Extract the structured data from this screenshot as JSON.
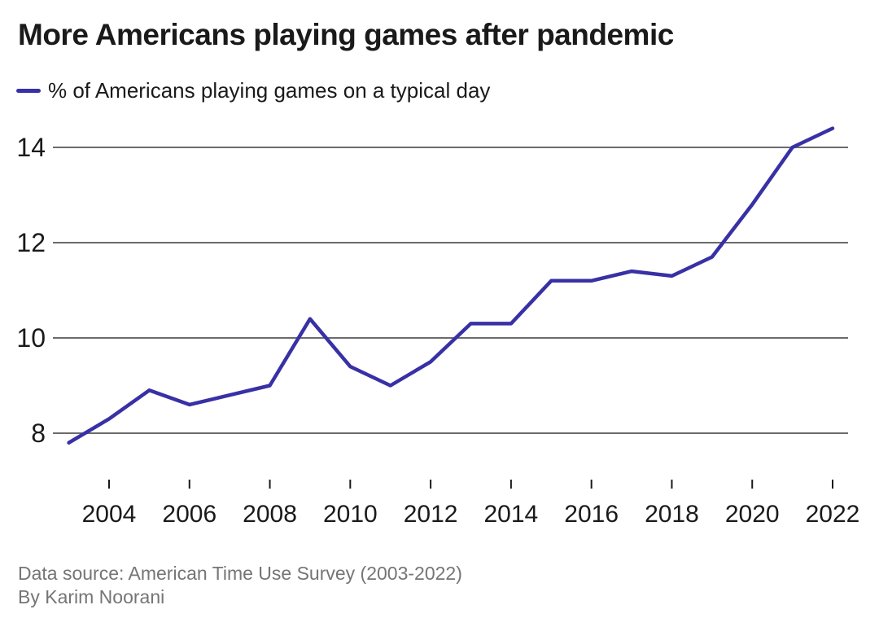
{
  "title": "More Americans playing games after pandemic",
  "legend": {
    "label": "% of Americans playing games on a typical day"
  },
  "footer": {
    "source": "Data source: American Time Use Survey (2003-2022)",
    "byline": "By Karim Noorani"
  },
  "colors": {
    "line": "#3831a5",
    "grid": "#6b6b6b",
    "tick": "#1a1a1a",
    "axis_label": "#1a1a1a",
    "title_text": "#1a1a1a",
    "muted_text": "#757575",
    "background": "#ffffff"
  },
  "chart_data": {
    "type": "line",
    "title": "More Americans playing games after pandemic",
    "x": [
      2003,
      2004,
      2005,
      2006,
      2007,
      2008,
      2009,
      2010,
      2011,
      2012,
      2013,
      2014,
      2015,
      2016,
      2017,
      2018,
      2019,
      2020,
      2021,
      2022
    ],
    "series": [
      {
        "name": "% of Americans playing games on a typical day",
        "color": "#3831a5",
        "values": [
          7.8,
          8.3,
          8.9,
          8.6,
          8.8,
          9.0,
          10.4,
          9.4,
          9.0,
          9.5,
          10.3,
          10.3,
          11.2,
          11.2,
          11.4,
          11.3,
          11.7,
          12.8,
          14.0,
          14.4
        ]
      }
    ],
    "xticks": [
      2004,
      2006,
      2008,
      2010,
      2012,
      2014,
      2016,
      2018,
      2020,
      2022
    ],
    "yticks": [
      8,
      10,
      12,
      14
    ],
    "ylim": [
      7.5,
      14.6
    ],
    "xlabel": "",
    "ylabel": "",
    "grid": "horizontal",
    "legend_position": "top-left"
  }
}
